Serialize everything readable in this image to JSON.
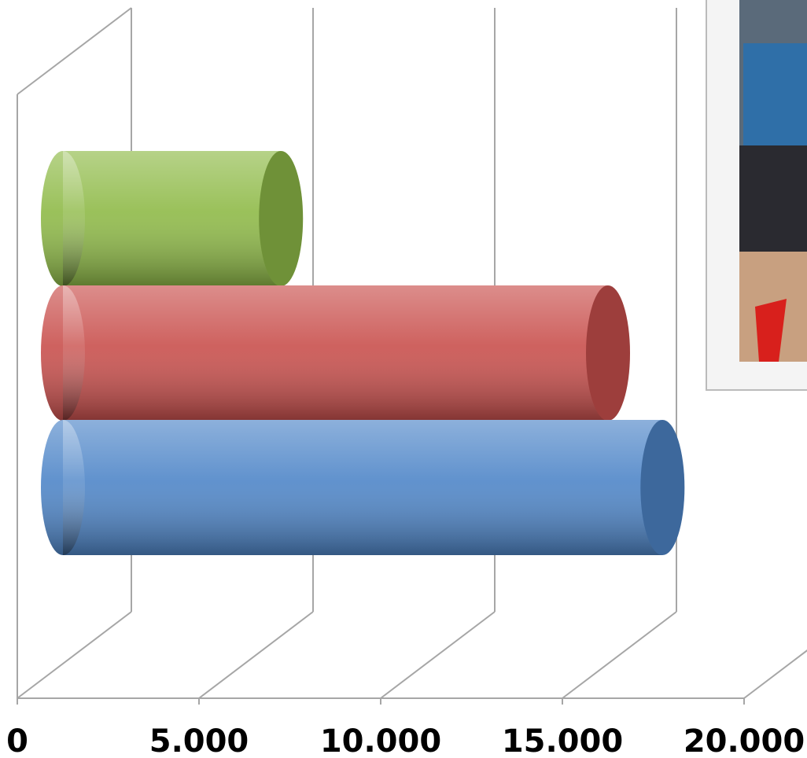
{
  "chart_data": {
    "type": "bar3d-cylinder",
    "categories": [
      null,
      null,
      null
    ],
    "values": [
      6000,
      15000,
      16500
    ],
    "colors": [
      "#8fba48",
      "#c9504d",
      "#4f86c8"
    ],
    "xlim": [
      0,
      20000
    ],
    "xticks": [
      0,
      {
        "value": 5000,
        "label": "5.000"
      },
      {
        "value": 10000,
        "label": "10.000"
      },
      {
        "value": 15000,
        "label": "15.000"
      },
      {
        "value": 20000,
        "label": "20.000"
      }
    ],
    "grid": true
  }
}
